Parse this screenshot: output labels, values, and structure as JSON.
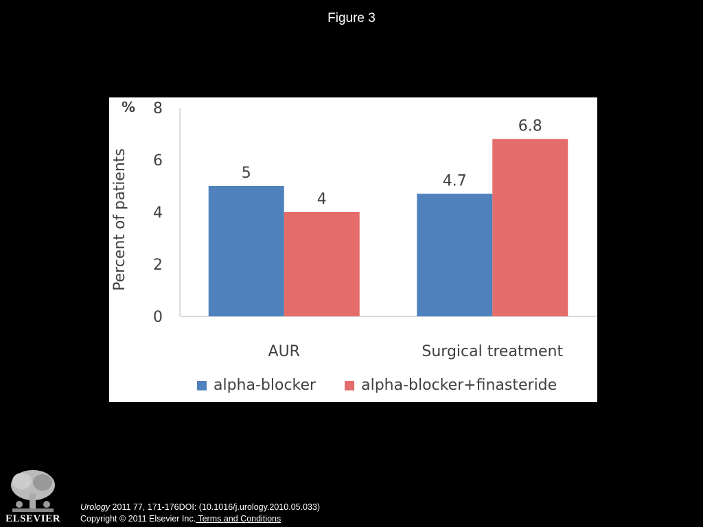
{
  "figure": {
    "title": "Figure 3"
  },
  "chart_data": {
    "type": "bar",
    "categories": [
      "AUR",
      "Surgical treatment"
    ],
    "series": [
      {
        "name": "alpha-blocker",
        "values": [
          5,
          4.7
        ],
        "color": "#4F81BD"
      },
      {
        "name": "alpha-blocker+finasteride",
        "values": [
          4,
          6.8
        ],
        "color": "#E46C6A"
      }
    ],
    "data_labels": [
      [
        "5",
        "4.7"
      ],
      [
        "4",
        "6.8"
      ]
    ],
    "ylabel": "Percent of patients",
    "yunit": "%",
    "ylim": [
      0,
      8
    ],
    "yticks": [
      0,
      2,
      4,
      6,
      8
    ],
    "ytick_labels": [
      "0",
      "2",
      "4",
      "6",
      "8"
    ],
    "grid": false,
    "legend_position": "bottom"
  },
  "footer": {
    "journal": "Urology",
    "citation": " 2011 77, 171-176DOI: (10.1016/j.urology.2010.05.033) ",
    "copyright": "Copyright © 2011 Elsevier Inc.",
    "terms_link": " Terms and Conditions"
  },
  "logo": {
    "text": "ELSEVIER"
  }
}
